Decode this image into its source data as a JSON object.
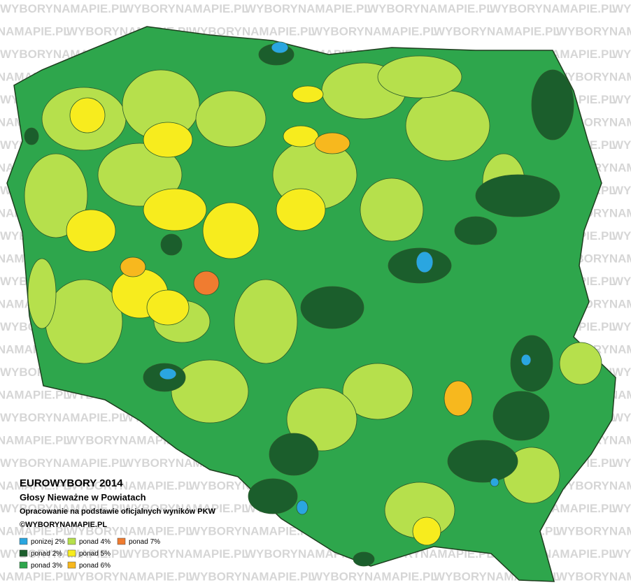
{
  "header": {
    "title": "EUROWYBORY 2014",
    "subtitle": "Głosy Nieważne w Powiatach",
    "note": "Opracowanie na podstawie oficjalnych wyników PKW",
    "credit": "©WYBORYNAMAPIE.PL"
  },
  "watermark": "WYBORYNAMAPIE.PL",
  "legend": [
    {
      "label": "ponizej 2%",
      "color": "#2aa6e0"
    },
    {
      "label": "ponad 2%",
      "color": "#1b5e2c"
    },
    {
      "label": "ponad 3%",
      "color": "#2ea64c"
    },
    {
      "label": "ponad 4%",
      "color": "#b6e04c"
    },
    {
      "label": "ponad 5%",
      "color": "#f7ec1e"
    },
    {
      "label": "ponad 6%",
      "color": "#f7b81e"
    },
    {
      "label": "ponad 7%",
      "color": "#f07c30"
    }
  ]
}
